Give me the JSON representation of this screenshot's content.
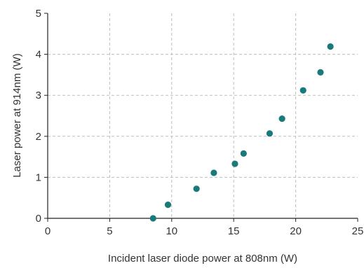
{
  "chart_data": {
    "type": "scatter",
    "title": "",
    "xlabel": "Incident laser diode power at 808nm (W)",
    "ylabel": "Laser power at 914nm (W)",
    "xlim": [
      0,
      25
    ],
    "ylim": [
      0,
      5
    ],
    "xticks": [
      "0",
      "5",
      "10",
      "15",
      "20",
      "25"
    ],
    "yticks": [
      "0",
      "1",
      "2",
      "3",
      "4",
      "5"
    ],
    "grid": true,
    "legend": "none",
    "series": [
      {
        "color": "#1a7a7a",
        "points": [
          {
            "x": 8.5,
            "y": 0.0
          },
          {
            "x": 9.7,
            "y": 0.33
          },
          {
            "x": 12.0,
            "y": 0.72
          },
          {
            "x": 13.4,
            "y": 1.11
          },
          {
            "x": 15.1,
            "y": 1.33
          },
          {
            "x": 15.8,
            "y": 1.58
          },
          {
            "x": 17.9,
            "y": 2.07
          },
          {
            "x": 18.9,
            "y": 2.43
          },
          {
            "x": 20.6,
            "y": 3.12
          },
          {
            "x": 22.0,
            "y": 3.56
          },
          {
            "x": 22.8,
            "y": 4.19
          }
        ]
      }
    ]
  }
}
